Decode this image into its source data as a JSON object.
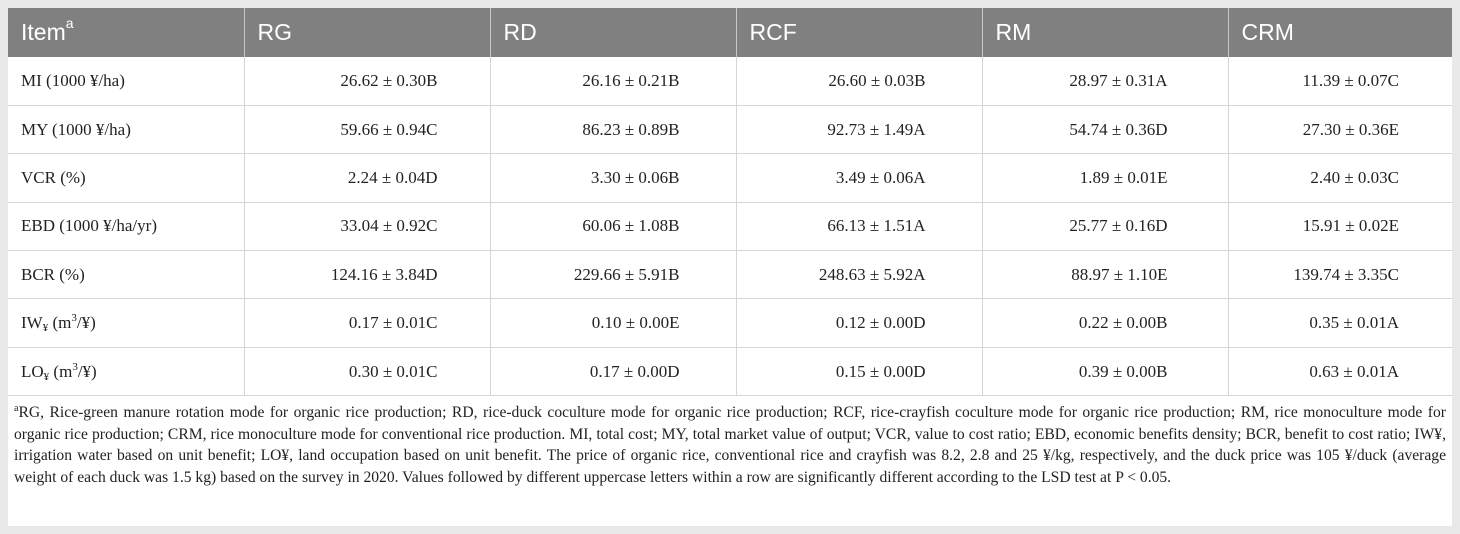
{
  "table": {
    "header": {
      "item": "Item",
      "item_sup": "a",
      "columns": [
        "RG",
        "RD",
        "RCF",
        "RM",
        "CRM"
      ]
    },
    "rows": [
      {
        "label_main": "MI (1000 ¥/ha)",
        "label_sub": "",
        "label_unit_pre": "",
        "label_unit_sup": "",
        "label_unit_post": "",
        "values": [
          "26.62 ± 0.30B",
          "26.16 ± 0.21B",
          "26.60 ± 0.03B",
          "28.97 ± 0.31A",
          "11.39 ± 0.07C"
        ]
      },
      {
        "label_main": "MY (1000 ¥/ha)",
        "label_sub": "",
        "label_unit_pre": "",
        "label_unit_sup": "",
        "label_unit_post": "",
        "values": [
          "59.66 ± 0.94C",
          "86.23 ± 0.89B",
          "92.73 ± 1.49A",
          "54.74 ± 0.36D",
          "27.30 ± 0.36E"
        ]
      },
      {
        "label_main": "VCR (%)",
        "label_sub": "",
        "label_unit_pre": "",
        "label_unit_sup": "",
        "label_unit_post": "",
        "values": [
          "2.24 ± 0.04D",
          "3.30 ± 0.06B",
          "3.49 ± 0.06A",
          "1.89 ± 0.01E",
          "2.40 ± 0.03C"
        ]
      },
      {
        "label_main": "EBD (1000 ¥/ha/yr)",
        "label_sub": "",
        "label_unit_pre": "",
        "label_unit_sup": "",
        "label_unit_post": "",
        "values": [
          "33.04 ± 0.92C",
          "60.06 ± 1.08B",
          "66.13 ± 1.51A",
          "25.77 ± 0.16D",
          "15.91 ± 0.02E"
        ]
      },
      {
        "label_main": "BCR (%)",
        "label_sub": "",
        "label_unit_pre": "",
        "label_unit_sup": "",
        "label_unit_post": "",
        "values": [
          "124.16 ± 3.84D",
          "229.66 ± 5.91B",
          "248.63 ± 5.92A",
          "88.97 ± 1.10E",
          "139.74 ± 3.35C"
        ]
      },
      {
        "label_main": "IW",
        "label_sub": "¥",
        "label_unit_pre": " (m",
        "label_unit_sup": "3",
        "label_unit_post": "/¥)",
        "values": [
          "0.17 ± 0.01C",
          "0.10 ± 0.00E",
          "0.12 ± 0.00D",
          "0.22 ± 0.00B",
          "0.35 ± 0.01A"
        ]
      },
      {
        "label_main": "LO",
        "label_sub": "¥",
        "label_unit_pre": " (m",
        "label_unit_sup": "3",
        "label_unit_post": "/¥)",
        "values": [
          "0.30 ± 0.01C",
          "0.17 ± 0.00D",
          "0.15 ± 0.00D",
          "0.39 ± 0.00B",
          "0.63 ± 0.01A"
        ]
      }
    ],
    "footnote_sup": "a",
    "footnote": "RG, Rice-green manure rotation mode for organic rice production; RD, rice-duck coculture mode for organic rice production; RCF, rice-crayfish coculture mode for organic rice production; RM, rice monoculture mode for organic rice production; CRM, rice monoculture mode for conventional rice production. MI, total cost; MY, total market value of output; VCR, value to cost ratio; EBD, economic benefits density; BCR, benefit to cost ratio; IW¥, irrigation water based on unit benefit; LO¥, land occupation based on unit benefit. The price of organic rice, conventional rice and crayfish was 8.2, 2.8 and 25 ¥/kg, respectively, and the duck price was 105 ¥/duck (average weight of each duck was 1.5 kg) based on the survey in 2020. Values followed by different uppercase letters within a row are significantly different according to the LSD test at P < 0.05."
  }
}
